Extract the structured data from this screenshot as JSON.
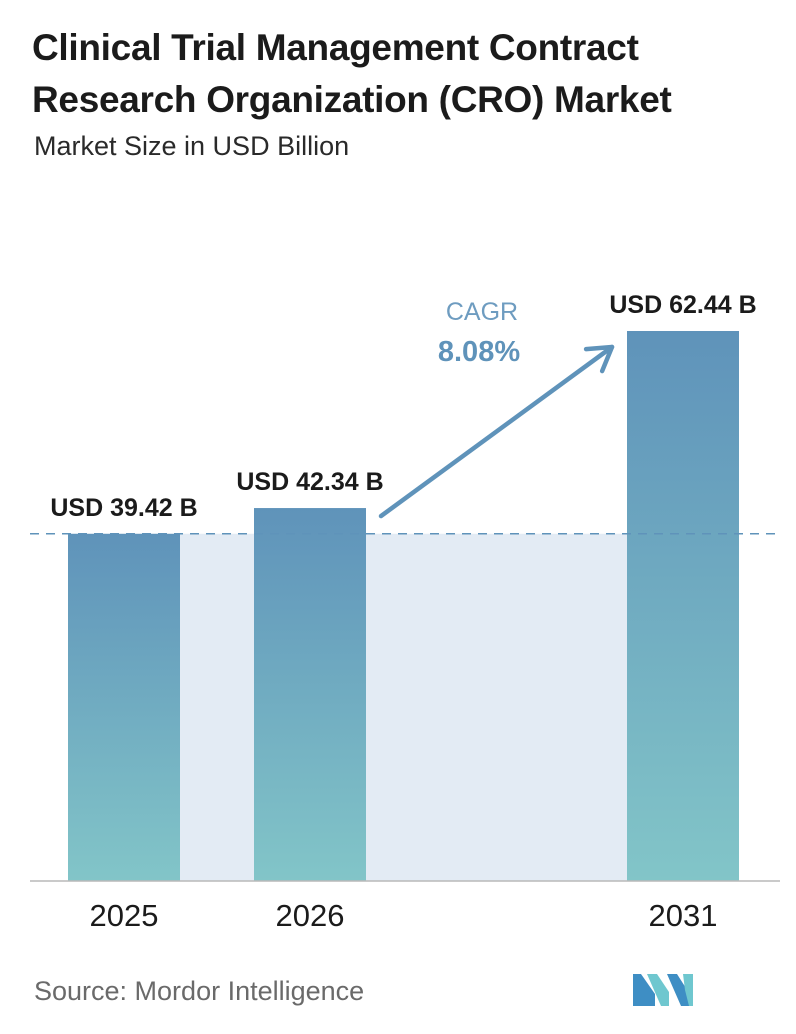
{
  "header": {
    "title": "Clinical Trial Management Contract Research Organization (CRO) Market",
    "subtitle": "Market Size in USD Billion"
  },
  "chart_data": {
    "type": "bar",
    "categories": [
      "2025",
      "2026",
      "2031"
    ],
    "values": [
      39.42,
      42.34,
      62.44
    ],
    "value_labels": [
      "USD 39.42 B",
      "USD 42.34 B",
      "USD 62.44 B"
    ],
    "title": "Clinical Trial Management Contract Research Organization (CRO) Market",
    "subtitle": "Market Size in USD Billion",
    "ylabel": "",
    "xlabel": "",
    "ylim": [
      0,
      62.44
    ],
    "grid": false,
    "reference_line": {
      "value": 39.42,
      "style": "dashed"
    },
    "annotation": {
      "label": "CAGR",
      "value": "8.08%"
    },
    "colors": {
      "bar_top": "#5f93ba",
      "bar_bottom": "#82c5c8",
      "band": "#e3ebf4",
      "arrow": "#5f93ba",
      "cagr_label": "#6e9cc0",
      "cagr_value": "#5f93ba"
    }
  },
  "footer": {
    "source": "Source:  Mordor Intelligence",
    "logo_icon": "mordor-intelligence-logo-icon"
  }
}
